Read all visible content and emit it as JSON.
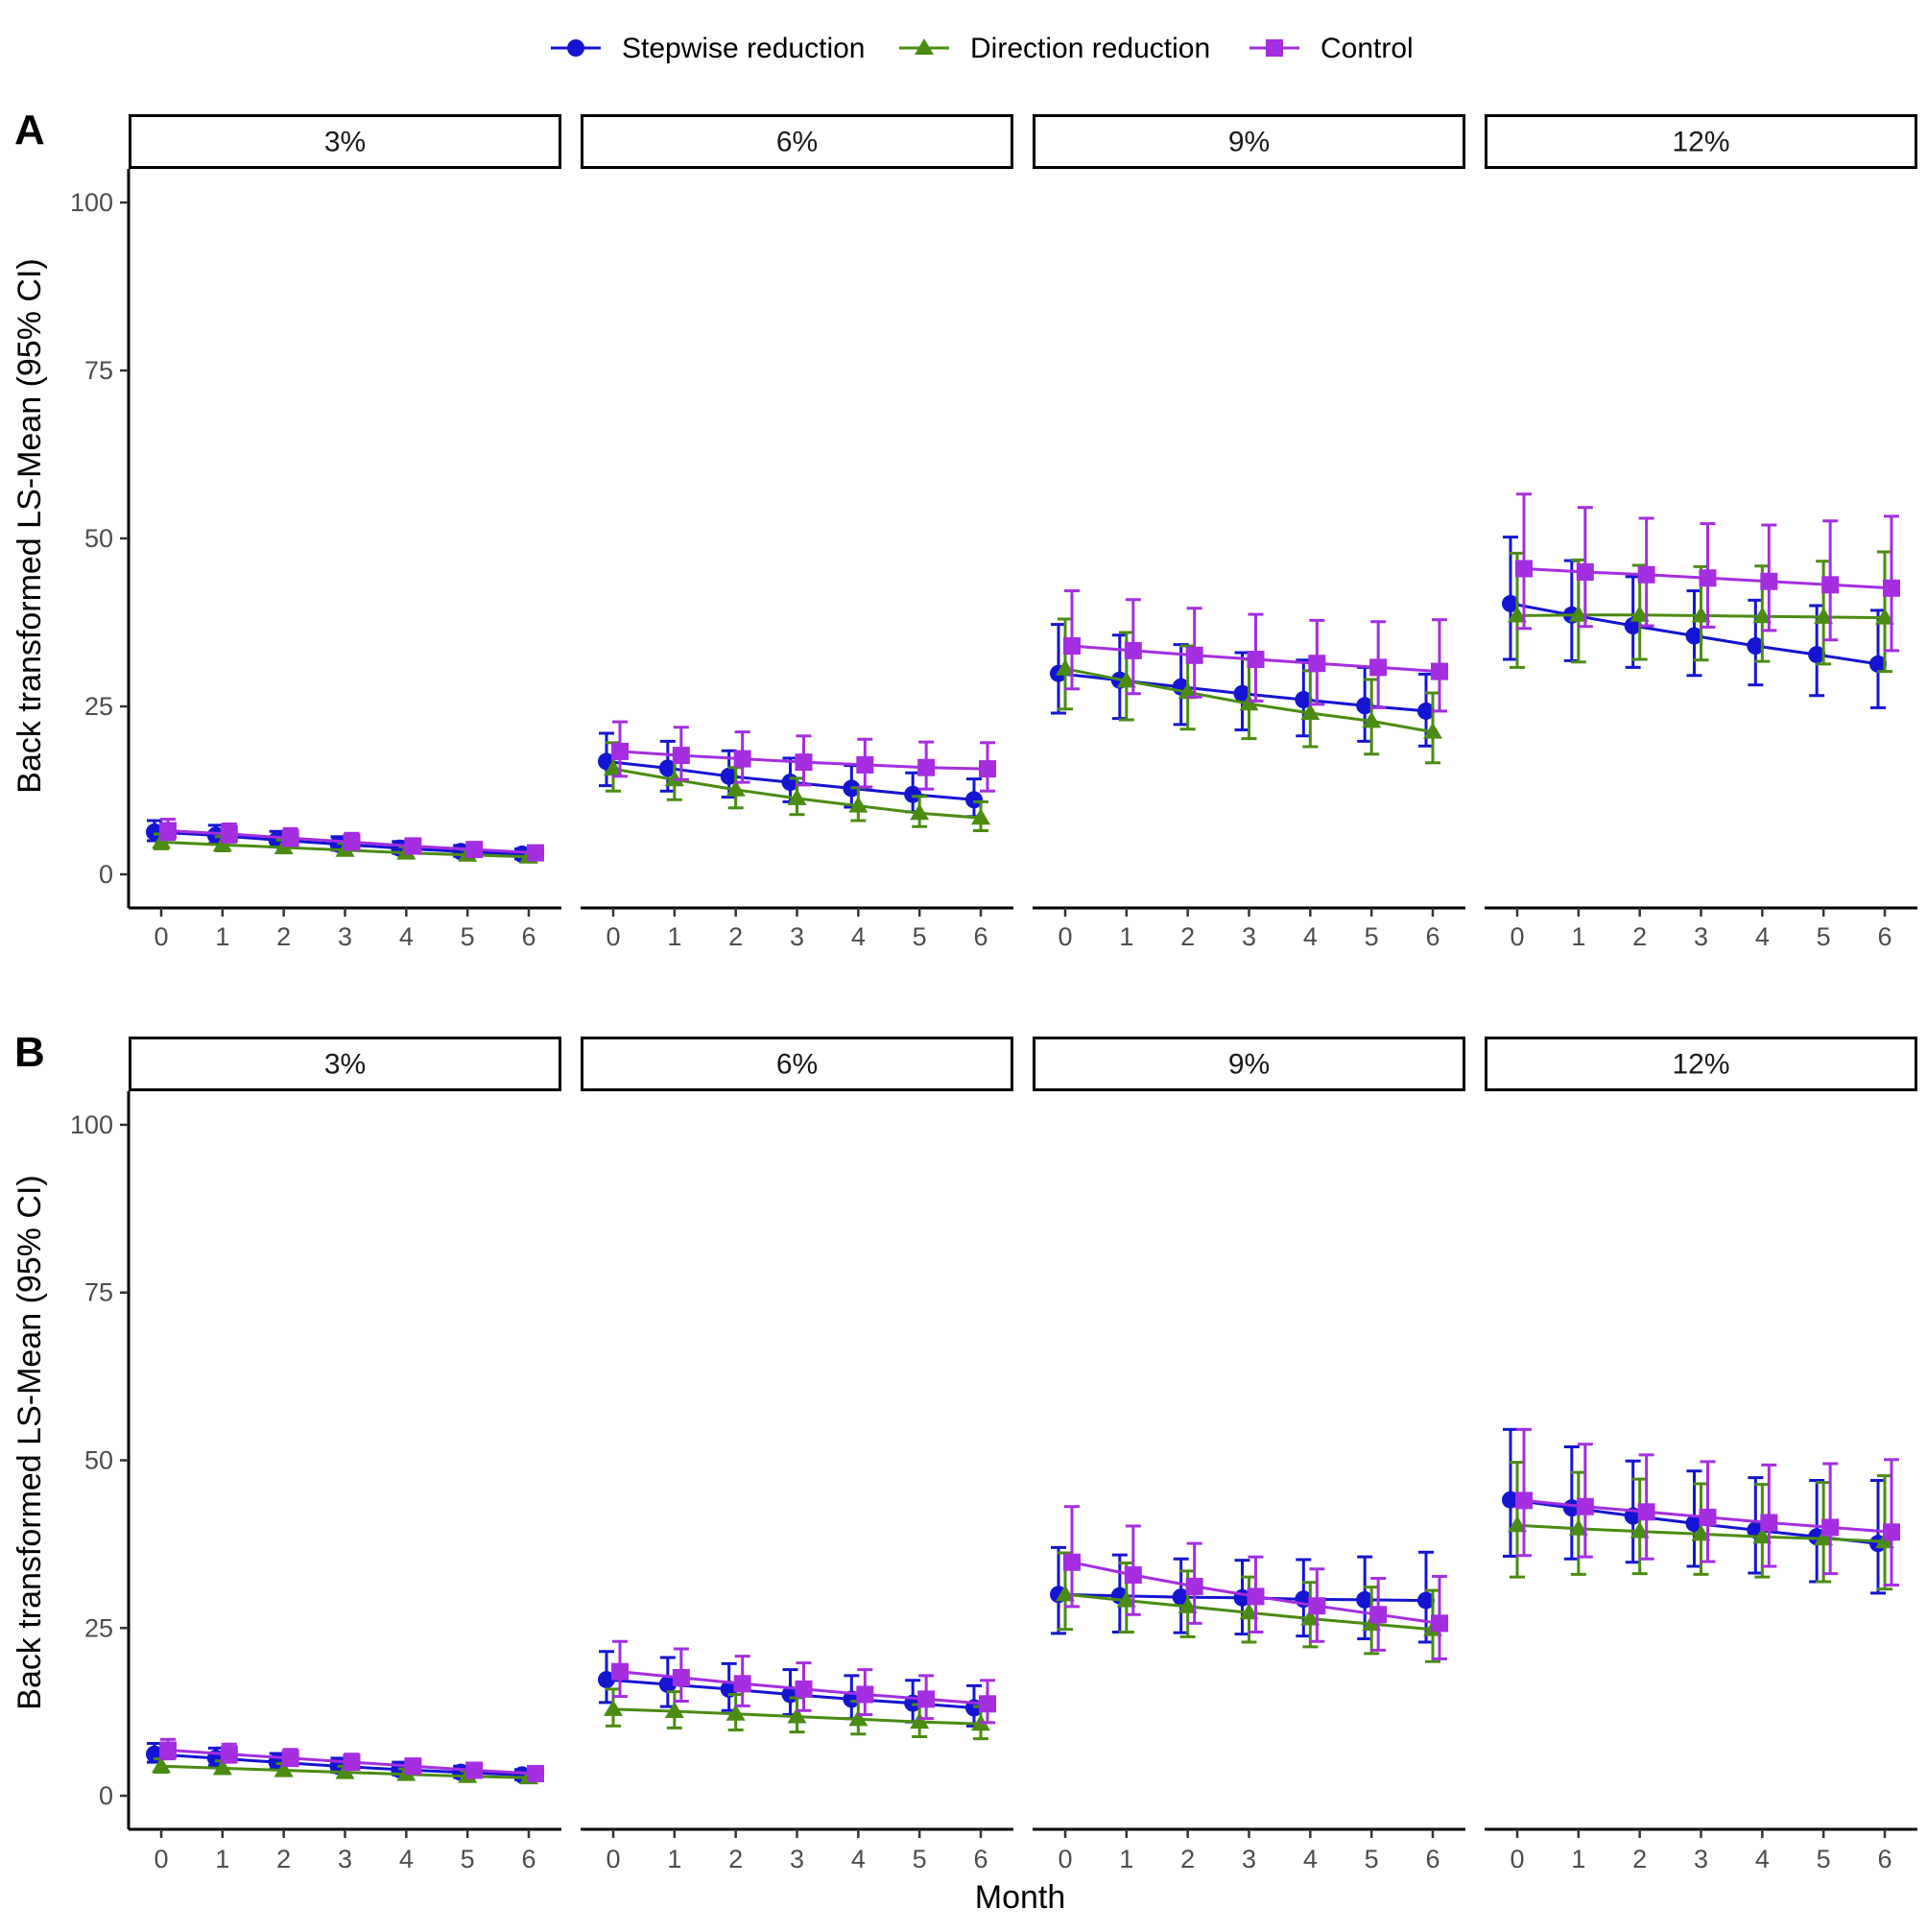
{
  "chart_data": {
    "type": "line",
    "xlabel": "Month",
    "ylabel": "Back transformed LS-Mean (95% CI)",
    "x": [
      0,
      1,
      2,
      3,
      4,
      5,
      6
    ],
    "x_ticks": [
      "0",
      "1",
      "2",
      "3",
      "4",
      "5",
      "6"
    ],
    "ylim": [
      -5,
      105
    ],
    "y_ticks": [
      0,
      25,
      50,
      75,
      100
    ],
    "y_tick_labels": [
      "0",
      "25",
      "50",
      "75",
      "100"
    ],
    "grid": false,
    "legend_position": "top",
    "series_meta": [
      {
        "name": "Stepwise reduction",
        "color": "#1414d2",
        "marker": "circle"
      },
      {
        "name": "Direction reduction",
        "color": "#4a8c12",
        "marker": "triangle"
      },
      {
        "name": "Control",
        "color": "#a42ee0",
        "marker": "square"
      }
    ],
    "panels": [
      {
        "tag": "A",
        "facets": [
          {
            "label": "3%",
            "series": [
              {
                "name": "Stepwise reduction",
                "values": [
                  6.3,
                  5.8,
                  5.1,
                  4.5,
                  3.9,
                  3.4,
                  3.0
                ],
                "lower": [
                  5.0,
                  4.6,
                  4.1,
                  3.6,
                  3.1,
                  2.7,
                  2.3
                ],
                "upper": [
                  8.0,
                  7.3,
                  6.4,
                  5.6,
                  4.9,
                  4.3,
                  3.8
                ]
              },
              {
                "name": "Direction reduction",
                "values": [
                  4.8,
                  4.4,
                  4.0,
                  3.6,
                  3.2,
                  2.9,
                  2.6
                ],
                "lower": [
                  3.8,
                  3.5,
                  3.2,
                  2.9,
                  2.5,
                  2.3,
                  2.0
                ],
                "upper": [
                  6.0,
                  5.6,
                  5.1,
                  4.6,
                  4.1,
                  3.7,
                  3.3
                ]
              },
              {
                "name": "Control",
                "values": [
                  6.5,
                  6.0,
                  5.4,
                  4.8,
                  4.2,
                  3.7,
                  3.2
                ],
                "lower": [
                  5.2,
                  4.8,
                  4.3,
                  3.8,
                  3.3,
                  2.9,
                  2.5
                ],
                "upper": [
                  8.2,
                  7.5,
                  6.8,
                  6.1,
                  5.3,
                  4.7,
                  4.1
                ]
              }
            ]
          },
          {
            "label": "6%",
            "series": [
              {
                "name": "Stepwise reduction",
                "values": [
                  16.8,
                  15.8,
                  14.6,
                  13.7,
                  12.8,
                  11.9,
                  11.1
                ],
                "lower": [
                  13.2,
                  12.4,
                  11.5,
                  10.8,
                  10.0,
                  9.3,
                  8.6
                ],
                "upper": [
                  21.0,
                  19.8,
                  18.4,
                  17.3,
                  16.2,
                  15.1,
                  14.2
                ]
              },
              {
                "name": "Direction reduction",
                "values": [
                  15.7,
                  14.1,
                  12.6,
                  11.3,
                  10.2,
                  9.1,
                  8.4
                ],
                "lower": [
                  12.4,
                  11.1,
                  9.9,
                  8.9,
                  8.0,
                  7.1,
                  6.5
                ],
                "upper": [
                  19.6,
                  17.8,
                  15.9,
                  14.3,
                  12.9,
                  11.6,
                  10.8
                ]
              },
              {
                "name": "Control",
                "values": [
                  18.3,
                  17.7,
                  17.2,
                  16.7,
                  16.3,
                  15.9,
                  15.7
                ],
                "lower": [
                  14.6,
                  14.1,
                  13.7,
                  13.3,
                  13.0,
                  12.7,
                  12.4
                ],
                "upper": [
                  22.7,
                  21.9,
                  21.2,
                  20.6,
                  20.1,
                  19.7,
                  19.6
                ]
              }
            ]
          },
          {
            "label": "9%",
            "series": [
              {
                "name": "Stepwise reduction",
                "values": [
                  29.9,
                  28.9,
                  27.9,
                  26.9,
                  26.0,
                  25.1,
                  24.3
                ],
                "lower": [
                  24.0,
                  23.2,
                  22.3,
                  21.5,
                  20.6,
                  19.8,
                  19.1
                ],
                "upper": [
                  37.2,
                  35.6,
                  34.2,
                  33.0,
                  31.9,
                  30.8,
                  29.8
                ]
              },
              {
                "name": "Direction reduction",
                "values": [
                  30.6,
                  28.8,
                  27.1,
                  25.4,
                  24.0,
                  22.8,
                  21.2
                ],
                "lower": [
                  24.6,
                  23.0,
                  21.6,
                  20.2,
                  19.0,
                  17.9,
                  16.6
                ],
                "upper": [
                  38.0,
                  36.0,
                  34.0,
                  32.0,
                  30.3,
                  29.0,
                  27.0
                ]
              },
              {
                "name": "Control",
                "values": [
                  34.0,
                  33.3,
                  32.6,
                  32.0,
                  31.4,
                  30.8,
                  30.2
                ],
                "lower": [
                  27.6,
                  26.9,
                  26.4,
                  25.8,
                  25.3,
                  24.8,
                  24.3
                ],
                "upper": [
                  42.2,
                  40.9,
                  39.6,
                  38.7,
                  37.8,
                  37.6,
                  37.9
                ]
              }
            ]
          },
          {
            "label": "12%",
            "series": [
              {
                "name": "Stepwise reduction",
                "values": [
                  40.3,
                  38.6,
                  37.0,
                  35.5,
                  34.0,
                  32.7,
                  31.3
                ],
                "lower": [
                  32.0,
                  31.8,
                  30.8,
                  29.6,
                  28.2,
                  26.6,
                  24.8
                ],
                "upper": [
                  50.2,
                  46.7,
                  44.3,
                  42.2,
                  40.8,
                  40.0,
                  39.3
                ]
              },
              {
                "name": "Direction reduction",
                "values": [
                  38.5,
                  38.6,
                  38.6,
                  38.5,
                  38.4,
                  38.3,
                  38.2
                ],
                "lower": [
                  30.8,
                  31.6,
                  32.0,
                  31.9,
                  31.7,
                  31.3,
                  30.2
                ],
                "upper": [
                  47.8,
                  46.8,
                  46.0,
                  45.8,
                  45.9,
                  46.6,
                  48.0
                ]
              },
              {
                "name": "Control",
                "values": [
                  45.5,
                  45.0,
                  44.6,
                  44.1,
                  43.6,
                  43.1,
                  42.6
                ],
                "lower": [
                  36.6,
                  36.9,
                  37.0,
                  36.8,
                  36.3,
                  34.9,
                  33.3
                ],
                "upper": [
                  56.6,
                  54.6,
                  53.0,
                  52.2,
                  52.0,
                  52.6,
                  53.3
                ]
              }
            ]
          }
        ]
      },
      {
        "tag": "B",
        "facets": [
          {
            "label": "3%",
            "series": [
              {
                "name": "Stepwise reduction",
                "values": [
                  6.2,
                  5.6,
                  5.0,
                  4.4,
                  3.9,
                  3.5,
                  3.1
                ],
                "lower": [
                  5.0,
                  4.5,
                  4.0,
                  3.5,
                  3.1,
                  2.7,
                  2.4
                ],
                "upper": [
                  7.8,
                  7.1,
                  6.3,
                  5.6,
                  5.0,
                  4.4,
                  3.9
                ]
              },
              {
                "name": "Direction reduction",
                "values": [
                  4.4,
                  4.1,
                  3.8,
                  3.5,
                  3.2,
                  2.9,
                  2.7
                ],
                "lower": [
                  3.5,
                  3.3,
                  3.0,
                  2.8,
                  2.5,
                  2.3,
                  2.1
                ],
                "upper": [
                  5.5,
                  5.2,
                  4.8,
                  4.4,
                  4.0,
                  3.7,
                  3.4
                ]
              },
              {
                "name": "Control",
                "values": [
                  6.8,
                  6.2,
                  5.6,
                  5.0,
                  4.4,
                  3.8,
                  3.3
                ],
                "lower": [
                  5.5,
                  5.0,
                  4.5,
                  4.0,
                  3.5,
                  3.0,
                  2.6
                ],
                "upper": [
                  8.4,
                  7.7,
                  6.9,
                  6.2,
                  5.5,
                  4.8,
                  4.2
                ]
              }
            ]
          },
          {
            "label": "6%",
            "series": [
              {
                "name": "Stepwise reduction",
                "values": [
                  17.3,
                  16.6,
                  15.9,
                  15.1,
                  14.4,
                  13.8,
                  13.1
                ],
                "lower": [
                  13.9,
                  13.3,
                  12.7,
                  12.1,
                  11.5,
                  11.0,
                  10.4
                ],
                "upper": [
                  21.5,
                  20.6,
                  19.7,
                  18.8,
                  17.9,
                  17.2,
                  16.4
                ]
              },
              {
                "name": "Direction reduction",
                "values": [
                  12.9,
                  12.6,
                  12.2,
                  11.8,
                  11.4,
                  11.0,
                  10.7
                ],
                "lower": [
                  10.4,
                  10.1,
                  9.8,
                  9.5,
                  9.2,
                  8.8,
                  8.5
                ],
                "upper": [
                  15.9,
                  15.5,
                  15.1,
                  14.6,
                  14.1,
                  13.6,
                  13.3
                ]
              },
              {
                "name": "Control",
                "values": [
                  18.5,
                  17.6,
                  16.7,
                  15.9,
                  15.1,
                  14.4,
                  13.7
                ],
                "lower": [
                  14.8,
                  14.1,
                  13.4,
                  12.7,
                  12.1,
                  11.5,
                  10.9
                ],
                "upper": [
                  23.0,
                  21.9,
                  20.8,
                  19.8,
                  18.8,
                  17.9,
                  17.2
                ]
              }
            ]
          },
          {
            "label": "9%",
            "series": [
              {
                "name": "Stepwise reduction",
                "values": [
                  30.0,
                  29.8,
                  29.6,
                  29.5,
                  29.3,
                  29.2,
                  29.1
                ],
                "lower": [
                  24.2,
                  24.4,
                  24.3,
                  24.1,
                  23.8,
                  23.4,
                  22.9
                ],
                "upper": [
                  37.0,
                  35.9,
                  35.3,
                  35.1,
                  35.2,
                  35.6,
                  36.3
                ]
              },
              {
                "name": "Direction reduction",
                "values": [
                  30.0,
                  29.1,
                  28.2,
                  27.3,
                  26.4,
                  25.6,
                  24.8
                ],
                "lower": [
                  24.8,
                  24.4,
                  23.7,
                  22.9,
                  22.2,
                  21.2,
                  20.0
                ],
                "upper": [
                  36.2,
                  34.7,
                  33.5,
                  32.6,
                  31.8,
                  31.1,
                  30.6
                ]
              },
              {
                "name": "Control",
                "values": [
                  34.8,
                  32.9,
                  31.2,
                  29.7,
                  28.3,
                  27.0,
                  25.7
                ],
                "lower": [
                  28.2,
                  27.0,
                  25.7,
                  24.4,
                  23.0,
                  21.7,
                  20.4
                ],
                "upper": [
                  43.1,
                  40.2,
                  37.6,
                  35.6,
                  33.8,
                  32.4,
                  32.7
                ]
              }
            ]
          },
          {
            "label": "12%",
            "series": [
              {
                "name": "Stepwise reduction",
                "values": [
                  44.1,
                  42.9,
                  41.7,
                  40.6,
                  39.6,
                  38.6,
                  37.6
                ],
                "lower": [
                  35.7,
                  35.3,
                  34.8,
                  34.2,
                  33.2,
                  31.9,
                  30.2
                ],
                "upper": [
                  54.6,
                  52.0,
                  49.9,
                  48.4,
                  47.4,
                  47.0,
                  47.0
                ]
              },
              {
                "name": "Direction reduction",
                "values": [
                  40.3,
                  39.8,
                  39.4,
                  39.0,
                  38.6,
                  38.3,
                  37.9
                ],
                "lower": [
                  32.6,
                  33.0,
                  33.1,
                  33.0,
                  32.6,
                  31.9,
                  30.8
                ],
                "upper": [
                  49.7,
                  48.2,
                  47.2,
                  46.5,
                  46.4,
                  46.7,
                  47.7
                ]
              },
              {
                "name": "Control",
                "values": [
                  44.0,
                  43.1,
                  42.3,
                  41.5,
                  40.7,
                  40.0,
                  39.3
                ],
                "lower": [
                  35.8,
                  35.6,
                  35.3,
                  34.9,
                  34.2,
                  33.1,
                  31.4
                ],
                "upper": [
                  54.6,
                  52.4,
                  50.8,
                  49.8,
                  49.3,
                  49.5,
                  50.1
                ]
              }
            ]
          }
        ]
      }
    ]
  }
}
